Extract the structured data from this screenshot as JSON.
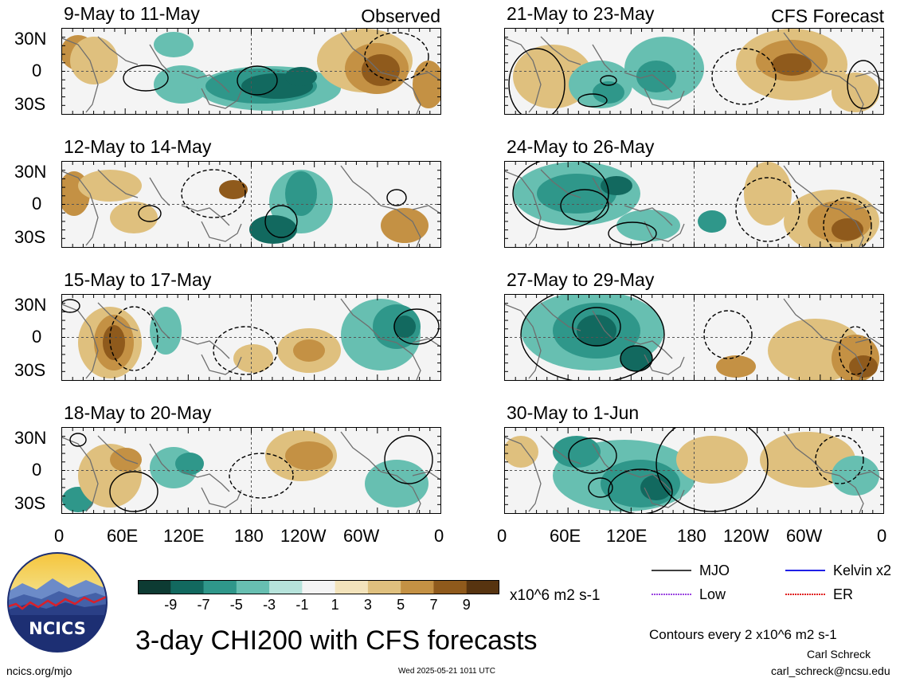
{
  "headers": {
    "left_tag": "Observed",
    "right_tag": "CFS Forecast"
  },
  "panels": [
    {
      "title": "9-May to 11-May"
    },
    {
      "title": "12-May to 14-May"
    },
    {
      "title": "15-May to 17-May"
    },
    {
      "title": "18-May to 20-May"
    },
    {
      "title": "21-May to 23-May"
    },
    {
      "title": "24-May to 26-May"
    },
    {
      "title": "27-May to 29-May"
    },
    {
      "title": "30-May to 1-Jun"
    }
  ],
  "lat_ticks": [
    "30N",
    "0",
    "30S"
  ],
  "lon_ticks": [
    "0",
    "60E",
    "120E",
    "180",
    "120W",
    "60W",
    "0"
  ],
  "colorbar": {
    "colors": [
      "#0d3b33",
      "#12695f",
      "#2f978a",
      "#67bfb1",
      "#b6e3db",
      "#f4f4f4",
      "#f3e3bb",
      "#dfc07e",
      "#c49144",
      "#8f5a1c",
      "#573410"
    ],
    "labels": [
      "-9",
      "-7",
      "-5",
      "-3",
      "-1",
      "1",
      "3",
      "5",
      "7",
      "9"
    ],
    "units": "x10^6 m2 s-1"
  },
  "legend": {
    "items": [
      {
        "label": "MJO",
        "color": "#000000"
      },
      {
        "label": "Kelvin x2",
        "color": "#1f1fe6"
      },
      {
        "label": "Low",
        "color": "#9b45e0"
      },
      {
        "label": "ER",
        "color": "#e02020"
      }
    ],
    "contour_note": "Contours every 2 x10^6 m2 s-1"
  },
  "main_title": "3-day CHI200 with CFS forecasts",
  "logo_text": "NCICS",
  "footer": {
    "url": "ncics.org/mjo",
    "timestamp": "Wed 2025-05-21 1011 UTC",
    "author": "Carl Schreck",
    "email": "carl_schreck@ncsu.edu"
  }
}
